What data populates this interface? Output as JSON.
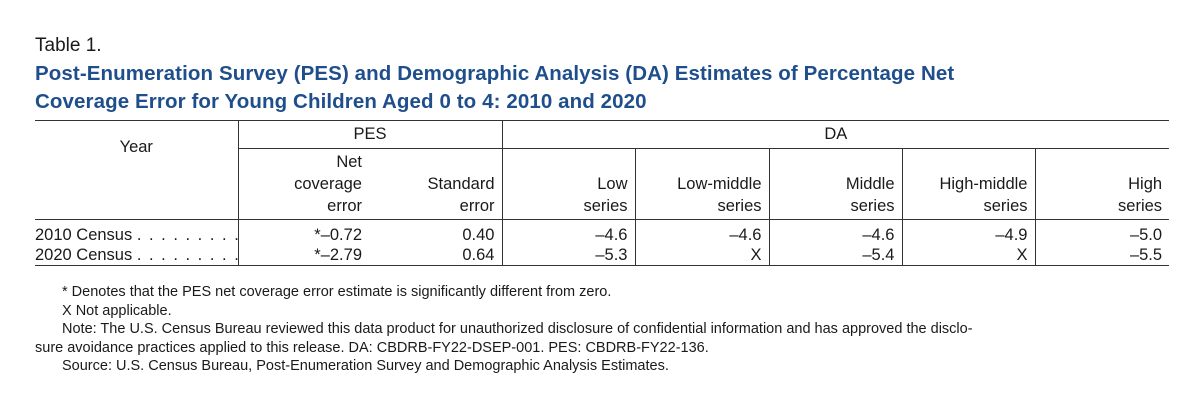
{
  "table_number": "Table 1.",
  "title_line1": "Post-Enumeration Survey (PES) and Demographic Analysis (DA) Estimates of Percentage Net",
  "title_line2": "Coverage Error for Young Children Aged 0 to 4: 2010 and 2020",
  "header": {
    "year": "Year",
    "pes": "PES",
    "da": "DA",
    "net_line1": "Net",
    "net_line2": "coverage",
    "net_line3": "error",
    "se_line1": "Standard",
    "se_line2": "error",
    "low_line1": "Low",
    "low_line2": "series",
    "lowmid_line1": "Low-middle",
    "lowmid_line2": "series",
    "mid_line1": "Middle",
    "mid_line2": "series",
    "highmid_line1": "High-middle",
    "highmid_line2": "series",
    "high_line1": "High",
    "high_line2": "series"
  },
  "rows": [
    {
      "year": "2010 Census",
      "leader": ". . . . . . . . .",
      "net": "*–0.72",
      "se": "0.40",
      "low": "–4.6",
      "lowmid": "–4.6",
      "mid": "–4.6",
      "highmid": "–4.9",
      "high": "–5.0"
    },
    {
      "year": "2020 Census",
      "leader": ". . . . . . . . .",
      "net": "*–2.79",
      "se": "0.64",
      "low": "–5.3",
      "lowmid": "X",
      "mid": "–5.4",
      "highmid": "X",
      "high": "–5.5"
    }
  ],
  "notes": {
    "asterisk": "* Denotes that the PES net coverage error estimate is significantly different from zero.",
    "x": "X Not applicable.",
    "note_line1": "Note: The U.S. Census Bureau reviewed this data product for unauthorized disclosure of confidential information and has approved the disclo-",
    "note_line2": "sure avoidance practices applied to this release. DA: CBDRB-FY22-DSEP-001. PES: CBDRB-FY22-136.",
    "source": "Source: U.S. Census Bureau, Post-Enumeration Survey and Demographic Analysis Estimates."
  }
}
